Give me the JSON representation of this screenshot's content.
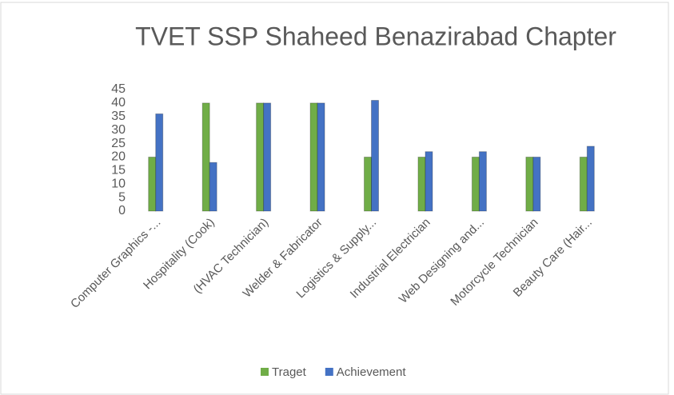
{
  "chart_data": {
    "type": "bar",
    "title": "TVET SSP Shaheed Benazirabad Chapter",
    "categories": [
      "Computer Graphics -...",
      "Hospitality (Cook)",
      "(HVAC Technician)",
      "Welder & Fabricator",
      "Logistics & Supply...",
      "Industrial Electrician",
      "Web Designing and...",
      "Motorcycle Technician",
      "Beauty Care (Hair..."
    ],
    "series": [
      {
        "name": "Traget",
        "color": "#70ad47",
        "values": [
          20,
          40,
          40,
          40,
          20,
          20,
          20,
          20,
          20
        ]
      },
      {
        "name": "Achievement",
        "color": "#4472c4",
        "values": [
          36,
          18,
          40,
          40,
          41,
          22,
          22,
          20,
          24
        ]
      }
    ],
    "ylim": [
      0,
      45
    ],
    "yticks": [
      0,
      5,
      10,
      15,
      20,
      25,
      30,
      35,
      40,
      45
    ],
    "grid": false,
    "legend": "bottom"
  }
}
